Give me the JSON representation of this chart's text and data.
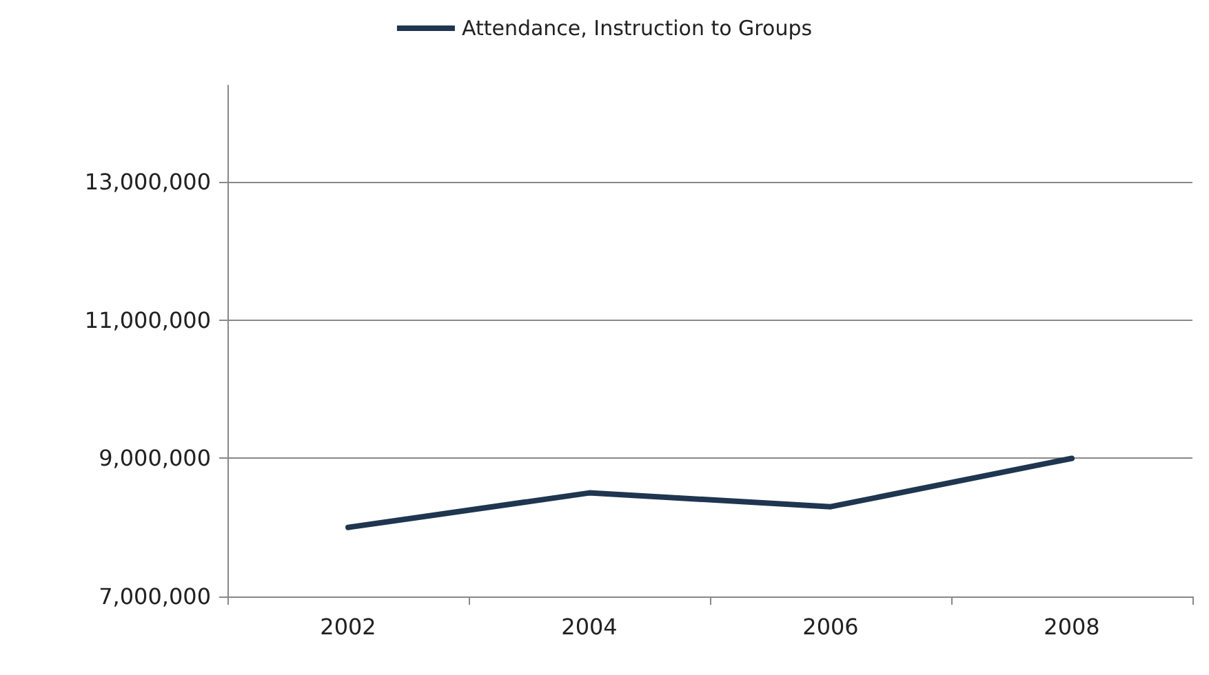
{
  "chart_data": {
    "type": "line",
    "categories": [
      "2002",
      "2004",
      "2006",
      "2008"
    ],
    "series": [
      {
        "name": "Attendance, Instruction to Groups",
        "color": "#1f3550",
        "values": [
          8000000,
          8500000,
          8300000,
          9000000
        ]
      }
    ],
    "ylim": [
      7000000,
      14400000
    ],
    "yticks": [
      {
        "value": 7000000,
        "label": "7,000,000"
      },
      {
        "value": 9000000,
        "label": "9,000,000"
      },
      {
        "value": 11000000,
        "label": "11,000,000"
      },
      {
        "value": 13000000,
        "label": "13,000,000"
      }
    ],
    "grid": "y",
    "legend": "top",
    "marker": "none",
    "line_style": "solid"
  }
}
